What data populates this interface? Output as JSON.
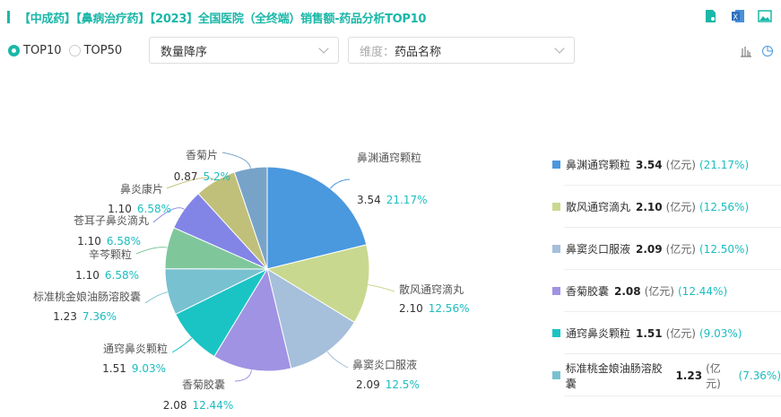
{
  "header": {
    "title": "【中成药】【鼻病治疗药】【2023】全国医院（全终端）销售额-药品分析TOP10",
    "icons": [
      "file-search-icon",
      "excel-export-icon",
      "image-export-icon"
    ]
  },
  "controls": {
    "radios": [
      {
        "label": "TOP10",
        "selected": true
      },
      {
        "label": "TOP50",
        "selected": false
      }
    ],
    "sort_select": {
      "value": "数量降序"
    },
    "dimension_select": {
      "prefix": "维度：",
      "value": "药品名称"
    },
    "view_icons": [
      "bar-chart-icon",
      "pie-chart-icon"
    ]
  },
  "chart_data": {
    "type": "pie",
    "unit": "(亿元)",
    "colors": {
      "accent": "#1ab7a8",
      "percent": "#1bbdc0"
    },
    "slices": [
      {
        "name": "鼻渊通窍颗粒",
        "value": "3.54",
        "pct": "21.17%",
        "legend_pct": "(21.17%)",
        "color": "#4a98de"
      },
      {
        "name": "散风通窍滴丸",
        "value": "2.10",
        "pct": "12.56%",
        "legend_pct": "(12.56%)",
        "color": "#c9d88f"
      },
      {
        "name": "鼻窦炎口服液",
        "value": "2.09",
        "pct": "12.5%",
        "legend_pct": "(12.50%)",
        "color": "#a6bfdb"
      },
      {
        "name": "香菊胶囊",
        "value": "2.08",
        "pct": "12.44%",
        "legend_pct": "(12.44%)",
        "color": "#a093e3"
      },
      {
        "name": "通窍鼻炎颗粒",
        "value": "1.51",
        "pct": "9.03%",
        "legend_pct": "(9.03%)",
        "color": "#1bc4c4"
      },
      {
        "name": "标准桃金娘油肠溶胶囊",
        "value": "1.23",
        "pct": "7.36%",
        "legend_pct": "(7.36%)",
        "color": "#78c1d1"
      },
      {
        "name": "辛芩颗粒",
        "value": "1.10",
        "pct": "6.58%",
        "color": "#7fc79b"
      },
      {
        "name": "苍耳子鼻炎滴丸",
        "value": "1.10",
        "pct": "6.58%",
        "color": "#8285e6"
      },
      {
        "name": "鼻炎康片",
        "value": "1.10",
        "pct": "6.58%",
        "color": "#c0c07a"
      },
      {
        "name": "香菊片",
        "value": "0.87",
        "pct": "5.2%",
        "color": "#78a3c9"
      }
    ]
  }
}
